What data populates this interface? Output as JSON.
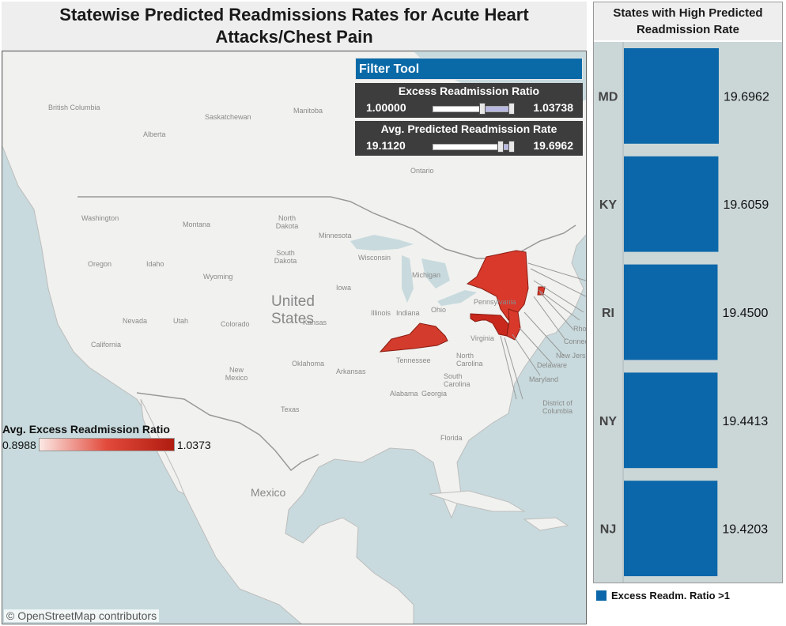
{
  "title": "Statewise Predicted Readmissions Rates for Acute Heart Attacks/Chest Pain",
  "map": {
    "country_labels": {
      "us": "United States",
      "mexico": "Mexico"
    },
    "region_labels": {
      "british_columbia": "British Columbia",
      "alberta": "Alberta",
      "saskatchewan": "Saskatchewan",
      "manitoba": "Manitoba",
      "ontario": "Ontario",
      "washington": "Washington",
      "montana": "Montana",
      "north_dakota": "North Dakota",
      "south_dakota": "South Dakota",
      "minnesota": "Minnesota",
      "wisconsin": "Wisconsin",
      "michigan": "Michigan",
      "oregon": "Oregon",
      "idaho": "Idaho",
      "wyoming": "Wyoming",
      "iowa": "Iowa",
      "nevada": "Nevada",
      "utah": "Utah",
      "colorado": "Colorado",
      "kansas": "Kansas",
      "illinois": "Illinois",
      "indiana": "Indiana",
      "ohio": "Ohio",
      "pennsylvania": "Pennsylvania",
      "california": "California",
      "oklahoma": "Oklahoma",
      "arkansas": "Arkansas",
      "tennessee": "Tennessee",
      "new_mexico": "New Mexico",
      "texas": "Texas",
      "alabama": "Alabama",
      "georgia": "Georgia",
      "north_carolina": "North Carolina",
      "south_carolina": "South Carolina",
      "florida": "Florida",
      "virginia": "Virginia",
      "maryland": "Maryland",
      "delaware": "Delaware",
      "new_jersey": "New Jers",
      "connecticut": "Connec",
      "rhode_island": "Rhod",
      "district_of_columbia": "District of Columbia"
    },
    "highlighted_states": [
      {
        "state": "NY",
        "fill": "#d9392b"
      },
      {
        "state": "KY",
        "fill": "#d33b2c"
      },
      {
        "state": "MD",
        "fill": "#c9281d"
      },
      {
        "state": "NJ",
        "fill": "#d9392b"
      },
      {
        "state": "RI",
        "fill": "#d9392b"
      }
    ],
    "attribution": "© OpenStreetMap contributors"
  },
  "filter_tool": {
    "header": "Filter Tool",
    "excess_ratio": {
      "label": "Excess Readmission Ratio",
      "min": "1.00000",
      "max": "1.03738",
      "fraction_low": 0.6,
      "fraction_high": 0.95
    },
    "predicted_rate": {
      "label": "Avg. Predicted Readmission Rate",
      "min": "19.1120",
      "max": "19.6962",
      "fraction_low": 0.82,
      "fraction_high": 0.95
    }
  },
  "map_legend": {
    "title": "Avg. Excess Readmission Ratio",
    "min": "0.8988",
    "max": "1.0373"
  },
  "bar_panel": {
    "title": "States with High Predicted Readmission Rate"
  },
  "bar_legend": {
    "label": "Excess Readm. Ratio >1",
    "color": "#0b67a9"
  },
  "chart_data": {
    "type": "bar",
    "orientation": "horizontal",
    "title": "States with High Predicted Readmission Rate",
    "categories": [
      "MD",
      "KY",
      "RI",
      "NY",
      "NJ"
    ],
    "values": [
      19.6962,
      19.6059,
      19.45,
      19.4413,
      19.4203
    ],
    "value_labels": [
      "19.6962",
      "19.6059",
      "19.4500",
      "19.4413",
      "19.4203"
    ],
    "series": [
      {
        "name": "Excess Readm. Ratio >1",
        "color": "#0b67a9"
      }
    ]
  }
}
